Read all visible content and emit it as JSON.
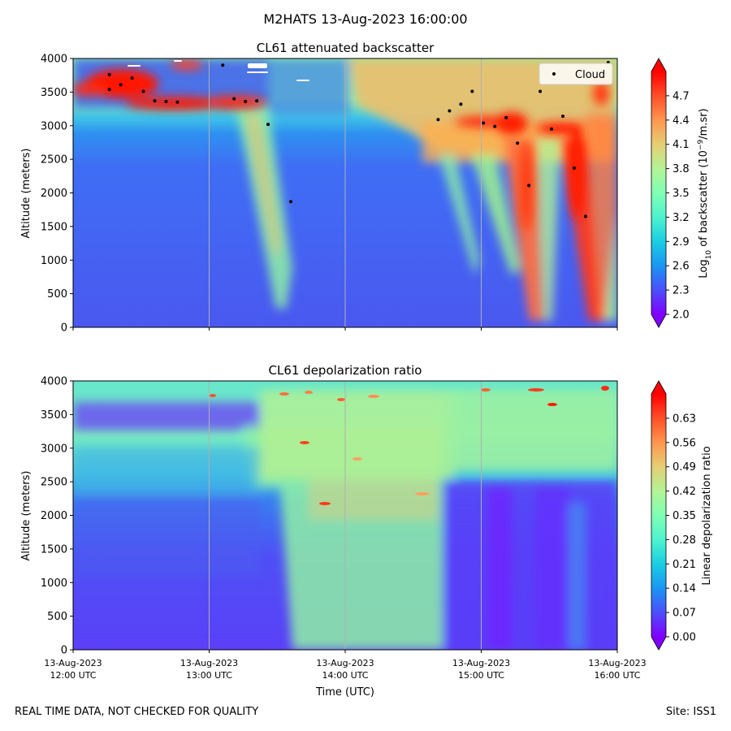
{
  "suptitle": "M2HATS 13-Aug-2023 16:00:00",
  "footer": {
    "left": "REAL TIME DATA, NOT CHECKED FOR QUALITY",
    "right": "Site: ISS1"
  },
  "colors": {
    "colormap": "rainbow",
    "cloud_marker": "#000000",
    "gridline": "#b0b0b0"
  },
  "chart_data": [
    {
      "type": "heatmap",
      "title": "CL61 attenuated backscatter",
      "ylabel": "Altitude (meters)",
      "xlabel": "",
      "x_range": [
        "2023-08-13T12:00:00Z",
        "2023-08-13T16:00:00Z"
      ],
      "ylim": [
        0,
        4000
      ],
      "yticks": [
        0,
        500,
        1000,
        1500,
        2000,
        2500,
        3000,
        3500,
        4000
      ],
      "vertical_grid": true,
      "legend_position": "top-right",
      "legend": [
        {
          "label": "Cloud",
          "marker": "dot",
          "color": "#000000"
        }
      ],
      "colorbar": {
        "label_html": "Log<tspan baseline-shift='sub' font-size='9'>10</tspan> of backscatter (10<tspan baseline-shift='super' font-size='9'>−9</tspan>/m.sr)",
        "label_prefix": "Log",
        "label_sub": "10",
        "label_mid": " of backscatter (10",
        "label_sup": "−9",
        "label_suffix": "/m.sr)",
        "min": 2.0,
        "max": 5.0,
        "ticks": [
          "2.0",
          "2.3",
          "2.6",
          "2.9",
          "3.2",
          "3.5",
          "3.8",
          "4.1",
          "4.4",
          "4.7"
        ],
        "tick_values": [
          2.0,
          2.3,
          2.6,
          2.9,
          3.2,
          3.5,
          3.8,
          4.1,
          4.4,
          4.7
        ],
        "extend": "both"
      },
      "cloud_points": [
        {
          "time": "12:16",
          "altitude": 3760
        },
        {
          "time": "12:16",
          "altitude": 3540
        },
        {
          "time": "12:21",
          "altitude": 3610
        },
        {
          "time": "12:26",
          "altitude": 3710
        },
        {
          "time": "12:31",
          "altitude": 3510
        },
        {
          "time": "12:36",
          "altitude": 3370
        },
        {
          "time": "12:41",
          "altitude": 3360
        },
        {
          "time": "12:46",
          "altitude": 3350
        },
        {
          "time": "13:06",
          "altitude": 3900
        },
        {
          "time": "13:11",
          "altitude": 3400
        },
        {
          "time": "13:16",
          "altitude": 3360
        },
        {
          "time": "13:21",
          "altitude": 3370
        },
        {
          "time": "13:26",
          "altitude": 3020
        },
        {
          "time": "13:36",
          "altitude": 1870
        },
        {
          "time": "14:41",
          "altitude": 3090
        },
        {
          "time": "14:46",
          "altitude": 3220
        },
        {
          "time": "14:51",
          "altitude": 3320
        },
        {
          "time": "14:56",
          "altitude": 3510
        },
        {
          "time": "15:01",
          "altitude": 3040
        },
        {
          "time": "15:06",
          "altitude": 2990
        },
        {
          "time": "15:11",
          "altitude": 3120
        },
        {
          "time": "15:16",
          "altitude": 2740
        },
        {
          "time": "15:21",
          "altitude": 2110
        },
        {
          "time": "15:26",
          "altitude": 3510
        },
        {
          "time": "15:31",
          "altitude": 2950
        },
        {
          "time": "15:36",
          "altitude": 3140
        },
        {
          "time": "15:41",
          "altitude": 2370
        },
        {
          "time": "15:46",
          "altitude": 1650
        },
        {
          "time": "15:56",
          "altitude": 3940
        }
      ]
    },
    {
      "type": "heatmap",
      "title": "CL61 depolarization ratio",
      "ylabel": "Altitude (meters)",
      "xlabel": "Time (UTC)",
      "x_range": [
        "2023-08-13T12:00:00Z",
        "2023-08-13T16:00:00Z"
      ],
      "xticks": [
        {
          "date": "13-Aug-2023",
          "time": "12:00 UTC"
        },
        {
          "date": "13-Aug-2023",
          "time": "13:00 UTC"
        },
        {
          "date": "13-Aug-2023",
          "time": "14:00 UTC"
        },
        {
          "date": "13-Aug-2023",
          "time": "15:00 UTC"
        },
        {
          "date": "13-Aug-2023",
          "time": "16:00 UTC"
        }
      ],
      "ylim": [
        0,
        4000
      ],
      "yticks": [
        0,
        500,
        1000,
        1500,
        2000,
        2500,
        3000,
        3500,
        4000
      ],
      "vertical_grid": true,
      "colorbar": {
        "label": "Linear depolarization ratio",
        "min": 0.0,
        "max": 0.7,
        "ticks": [
          "0.00",
          "0.07",
          "0.14",
          "0.21",
          "0.28",
          "0.35",
          "0.42",
          "0.49",
          "0.56",
          "0.63"
        ],
        "tick_values": [
          0.0,
          0.07,
          0.14,
          0.21,
          0.28,
          0.35,
          0.42,
          0.49,
          0.56,
          0.63
        ],
        "extend": "both"
      }
    }
  ]
}
